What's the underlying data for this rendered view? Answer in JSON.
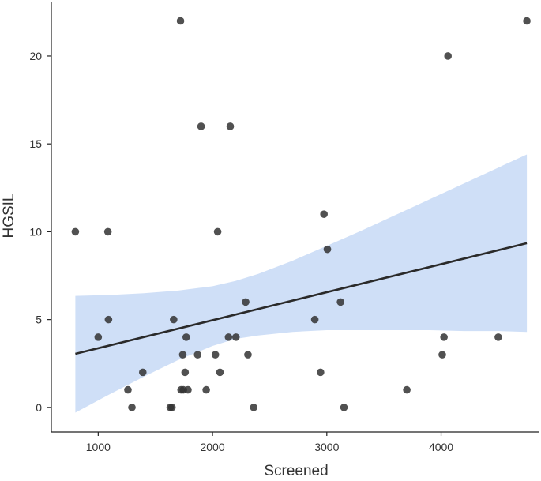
{
  "chart_data": {
    "type": "scatter",
    "xlabel": "Screened",
    "ylabel": "HGSIL",
    "xlim": [
      590,
      4860
    ],
    "ylim": [
      -1.4,
      23.1
    ],
    "x_ticks": [
      1000,
      2000,
      3000,
      4000
    ],
    "y_ticks": [
      0,
      5,
      10,
      15,
      20
    ],
    "x_tick_labels": [
      "1000",
      "2000",
      "3000",
      "4000"
    ],
    "y_tick_labels": [
      "0",
      "5",
      "10",
      "15",
      "20"
    ],
    "grid": false,
    "legend": "none",
    "points": [
      {
        "x": 800,
        "y": 10
      },
      {
        "x": 1000,
        "y": 4
      },
      {
        "x": 1085,
        "y": 10
      },
      {
        "x": 1090,
        "y": 5
      },
      {
        "x": 1260,
        "y": 1
      },
      {
        "x": 1295,
        "y": 0
      },
      {
        "x": 1390,
        "y": 2
      },
      {
        "x": 1630,
        "y": 0
      },
      {
        "x": 1645,
        "y": 0
      },
      {
        "x": 1660,
        "y": 5
      },
      {
        "x": 1720,
        "y": 22
      },
      {
        "x": 1725,
        "y": 1
      },
      {
        "x": 1740,
        "y": 3
      },
      {
        "x": 1745,
        "y": 1
      },
      {
        "x": 1760,
        "y": 2
      },
      {
        "x": 1770,
        "y": 4
      },
      {
        "x": 1785,
        "y": 1
      },
      {
        "x": 1870,
        "y": 3
      },
      {
        "x": 1900,
        "y": 16
      },
      {
        "x": 1945,
        "y": 1
      },
      {
        "x": 2025,
        "y": 3
      },
      {
        "x": 2045,
        "y": 10
      },
      {
        "x": 2065,
        "y": 2
      },
      {
        "x": 2140,
        "y": 4
      },
      {
        "x": 2155,
        "y": 16
      },
      {
        "x": 2205,
        "y": 4
      },
      {
        "x": 2290,
        "y": 6
      },
      {
        "x": 2310,
        "y": 3
      },
      {
        "x": 2360,
        "y": 0
      },
      {
        "x": 2895,
        "y": 5
      },
      {
        "x": 2945,
        "y": 2
      },
      {
        "x": 2975,
        "y": 11
      },
      {
        "x": 3005,
        "y": 9
      },
      {
        "x": 3120,
        "y": 6
      },
      {
        "x": 3150,
        "y": 0
      },
      {
        "x": 3700,
        "y": 1
      },
      {
        "x": 4010,
        "y": 3
      },
      {
        "x": 4025,
        "y": 4
      },
      {
        "x": 4060,
        "y": 20
      },
      {
        "x": 4500,
        "y": 4
      },
      {
        "x": 4750,
        "y": 22
      }
    ],
    "trend_line": {
      "x": [
        800,
        4750
      ],
      "y": [
        3.05,
        9.35
      ]
    },
    "confidence_band": {
      "x": [
        800,
        1100,
        1400,
        1700,
        2000,
        2200,
        2400,
        2700,
        3000,
        3300,
        3600,
        3900,
        4200,
        4500,
        4750
      ],
      "upper": [
        6.35,
        6.4,
        6.5,
        6.65,
        6.9,
        7.2,
        7.6,
        8.35,
        9.2,
        10.05,
        10.95,
        11.85,
        12.75,
        13.65,
        14.4
      ],
      "lower": [
        -0.3,
        0.75,
        1.75,
        2.7,
        3.5,
        3.9,
        4.1,
        4.3,
        4.4,
        4.4,
        4.4,
        4.4,
        4.35,
        4.35,
        4.3
      ]
    },
    "colors": {
      "point": "#333333",
      "trend_line": "#2a2a2a",
      "confidence_band": "#cfdff7",
      "axis": "#222222",
      "text": "#333333"
    }
  }
}
